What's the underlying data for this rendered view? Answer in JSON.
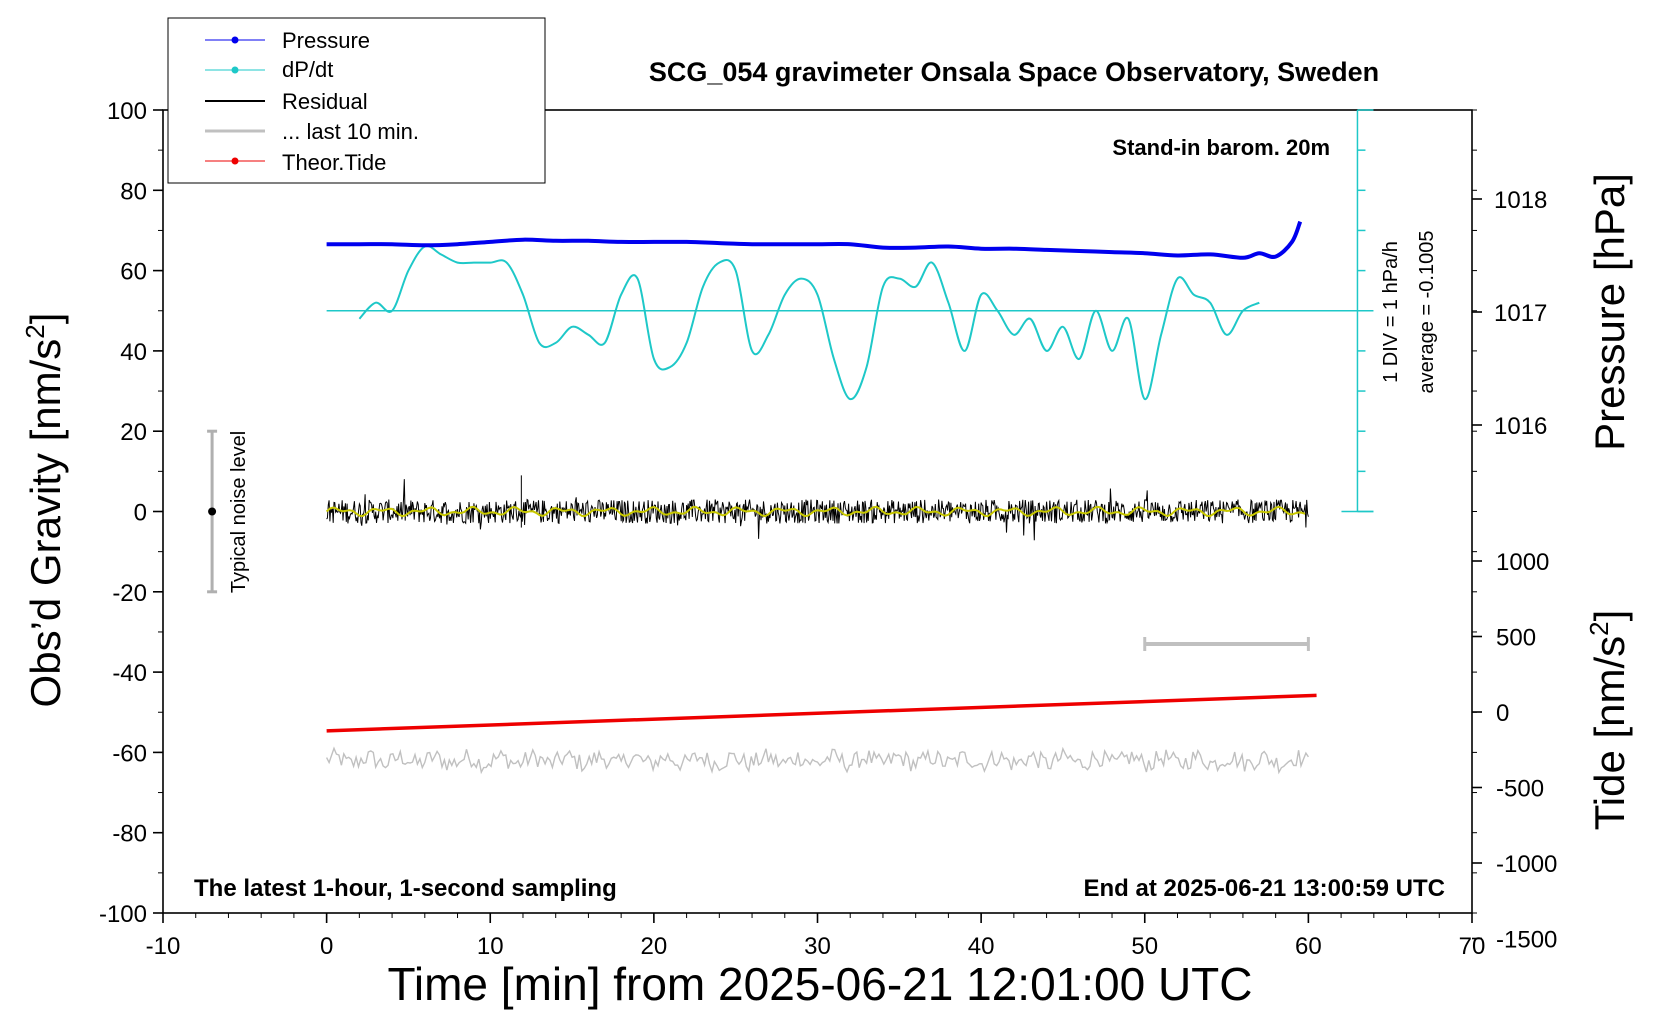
{
  "chart_data": {
    "type": "line",
    "title": "SCG_054 gravimeter Onsala Space Observatory, Sweden",
    "xlabel": "Time [min] from 2025-06-21 12:01:00 UTC",
    "ylabel_main": "Obs’d Gravity [nm/s",
    "ylabel_main_sup": "2",
    "ylabel_main_end": "]",
    "ylabel_pressure": "Pressure [hPa]",
    "ylabel_tide": "Tide [nm/s",
    "ylabel_tide_sup": "2",
    "ylabel_tide_end": "]",
    "xlim": [
      -10,
      70
    ],
    "ylim": [
      -100,
      100
    ],
    "x_ticks": [
      "-10",
      "0",
      "10",
      "20",
      "30",
      "40",
      "50",
      "60",
      "70"
    ],
    "y_ticks": [
      "-100",
      "-80",
      "-60",
      "-40",
      "-20",
      "0",
      "20",
      "40",
      "60",
      "80",
      "100"
    ],
    "pressure_ticks": [
      "1018",
      "1017",
      "1016"
    ],
    "tide_ticks": [
      "1000",
      "500",
      "0",
      "-500",
      "-1000",
      "-1500"
    ],
    "legend": [
      "Pressure",
      "dP/dt",
      "Residual",
      "... last 10 min.",
      "Theor.Tide"
    ],
    "annotations": {
      "barometer": "Stand-in barom. 20m",
      "div_note": "1 DIV = 1 hPa/h",
      "average": "average = -0.1005",
      "noise": "Typical noise level",
      "sampling": "The latest 1-hour, 1-second sampling",
      "end_time": "End at 2025-06-21 13:00:59 UTC"
    },
    "series": [
      {
        "name": "Pressure",
        "color": "#0000ee",
        "unit": "hPa",
        "x": [
          0,
          2,
          4,
          6,
          8,
          10,
          12,
          14,
          16,
          18,
          20,
          22,
          24,
          26,
          28,
          30,
          32,
          34,
          36,
          38,
          40,
          42,
          44,
          46,
          48,
          50,
          52,
          54,
          56,
          57,
          58,
          59,
          59.5
        ],
        "values": [
          1017.6,
          1017.6,
          1017.6,
          1017.59,
          1017.6,
          1017.62,
          1017.64,
          1017.63,
          1017.63,
          1017.62,
          1017.62,
          1017.62,
          1017.61,
          1017.6,
          1017.6,
          1017.6,
          1017.6,
          1017.57,
          1017.57,
          1017.58,
          1017.56,
          1017.56,
          1017.55,
          1017.54,
          1017.53,
          1017.52,
          1017.5,
          1017.51,
          1017.48,
          1017.52,
          1017.49,
          1017.62,
          1017.8
        ]
      },
      {
        "name": "dP/dt",
        "color": "#1ec8c8",
        "unit": "hPa/h",
        "x": [
          2,
          3,
          4,
          5,
          6,
          7,
          8,
          9,
          10,
          11,
          12,
          13,
          14,
          15,
          16,
          17,
          18,
          19,
          20,
          21,
          22,
          23,
          24,
          25,
          26,
          27,
          28,
          29,
          30,
          31,
          32,
          33,
          34,
          35,
          36,
          37,
          38,
          39,
          40,
          41,
          42,
          43,
          44,
          45,
          46,
          47,
          48,
          49,
          50,
          51,
          52,
          53,
          54,
          55,
          56,
          57
        ],
        "values": [
          -0.1,
          0.1,
          0.0,
          0.5,
          0.8,
          0.7,
          0.6,
          0.6,
          0.6,
          0.6,
          0.2,
          -0.4,
          -0.4,
          -0.2,
          -0.3,
          -0.4,
          0.2,
          0.4,
          -0.6,
          -0.7,
          -0.4,
          0.3,
          0.6,
          0.5,
          -0.5,
          -0.3,
          0.2,
          0.4,
          0.2,
          -0.6,
          -1.1,
          -0.7,
          0.3,
          0.4,
          0.3,
          0.6,
          0.1,
          -0.5,
          0.2,
          0.0,
          -0.3,
          -0.1,
          -0.5,
          -0.2,
          -0.6,
          0.0,
          -0.5,
          -0.1,
          -1.1,
          -0.3,
          0.4,
          0.2,
          0.1,
          -0.3,
          0.0,
          0.1
        ]
      },
      {
        "name": "Residual",
        "color": "#000000",
        "unit": "nm/s^2",
        "x_range": [
          0,
          60
        ],
        "level": 0,
        "noise_amplitude": 3
      },
      {
        "name": "... last 10 min.",
        "color": "#c0c0c0",
        "x_range": [
          50,
          60
        ],
        "level": -33
      },
      {
        "name": "Theor.Tide",
        "color": "#ee0000",
        "unit": "nm/s^2",
        "x": [
          0,
          60.5
        ],
        "values": [
          -125,
          110
        ]
      },
      {
        "name": "Residual (filtered)",
        "color": "#c8c800",
        "x_range": [
          0,
          60
        ],
        "level": 0
      },
      {
        "name": "Residual (offset, grey)",
        "color": "#c0c0c0",
        "x_range": [
          0,
          60
        ],
        "level": -62
      }
    ],
    "noise_bar": {
      "x": -7,
      "y_center": 0,
      "y_half_range": 20
    }
  }
}
